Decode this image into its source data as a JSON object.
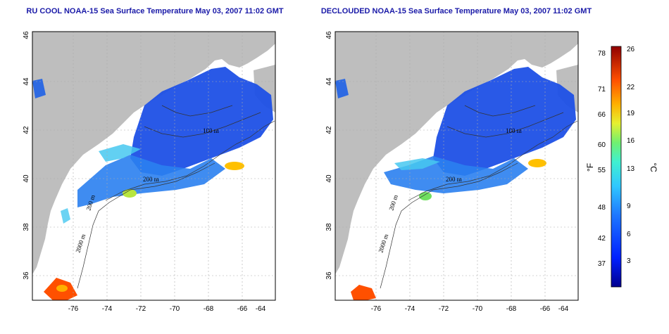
{
  "titles": {
    "left": "RU COOL NOAA-15 Sea Surface Temperature May 03, 2007 11:02 GMT",
    "right": "DECLOUDED NOAA-15 Sea Surface Temperature May 03, 2007 11:02 GMT"
  },
  "axes": {
    "lon_ticks": [
      "-76",
      "-74",
      "-72",
      "-70",
      "-68",
      "-66",
      "-64"
    ],
    "lat_ticks": [
      "46",
      "44",
      "42",
      "40",
      "38",
      "36"
    ]
  },
  "contour_labels": {
    "left": [
      "100 m",
      "200 m",
      "2000 m",
      "200 m"
    ],
    "right": [
      "100 m",
      "200 m",
      "2000 m",
      "200 m"
    ]
  },
  "colorbar": {
    "fahrenheit_ticks": [
      "78",
      "71",
      "66",
      "60",
      "55",
      "48",
      "42",
      "37"
    ],
    "celsius_ticks": [
      "26",
      "22",
      "19",
      "16",
      "13",
      "9",
      "6",
      "3"
    ],
    "fahrenheit_unit": "°F",
    "celsius_unit": "°C"
  },
  "colors": {
    "land": "#bebebe",
    "sst_cold": "#1e3cdc",
    "sst_mid": "#32a0f0",
    "sst_warm": "#ff8c00",
    "grid": "#aaaaaa"
  }
}
